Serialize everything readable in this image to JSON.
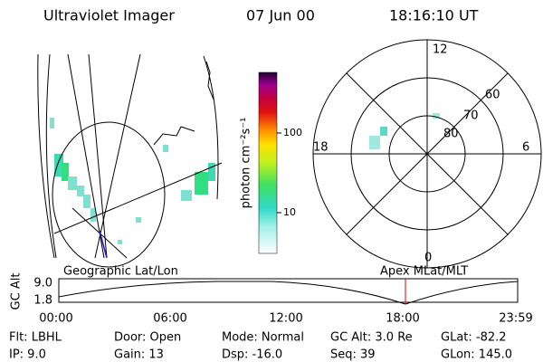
{
  "header": {
    "title": "Ultraviolet Imager",
    "date": "07 Jun 00",
    "time": "18:16:10 UT"
  },
  "colorbar": {
    "label": "photon cm⁻²s⁻¹",
    "ticks": [
      "100",
      "10"
    ]
  },
  "polar": {
    "labels": [
      "12",
      "60",
      "70",
      "80",
      "18",
      "6",
      "0"
    ]
  },
  "timeline": {
    "left_label": "Geographic Lat/Lon",
    "right_label": "Apex MLat/MLT",
    "y_axis": "GC Alt",
    "y_ticks": [
      "9.0",
      "1.8"
    ],
    "x_ticks": [
      "00:00",
      "06:00",
      "12:00",
      "18:00",
      "23:59"
    ]
  },
  "footer": {
    "rows": [
      [
        "Flt: LBHL",
        "Door: Open",
        "Mode: Normal",
        "GC Alt: 3.0 Re",
        "GLat: -82.2"
      ],
      [
        "IP: 9.0",
        "Gain: 13",
        "Dsp: -16.0",
        "Seq: 39",
        "GLon: 145.0"
      ]
    ]
  }
}
